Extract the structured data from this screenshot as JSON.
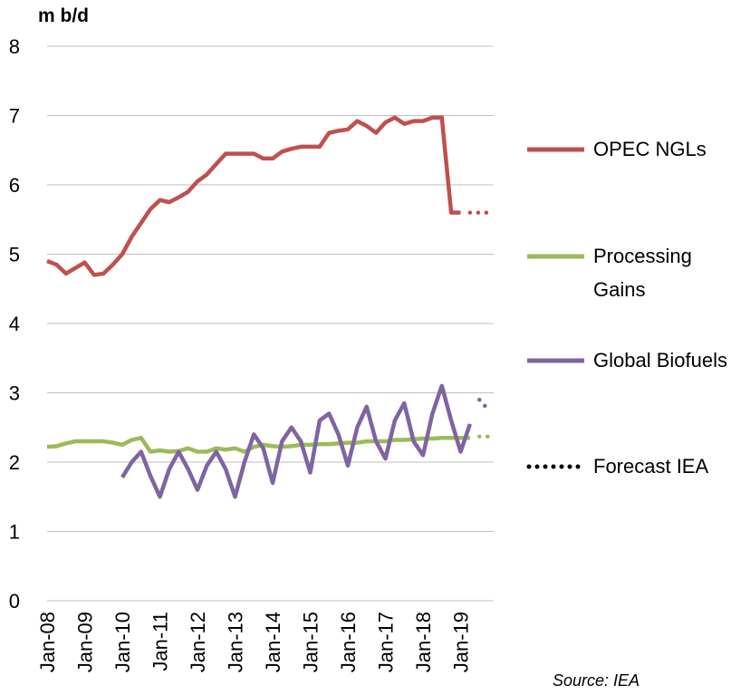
{
  "chart_data": {
    "type": "line",
    "y_axis_label": "m b/d",
    "source": "Source: IEA",
    "forecast_label": "Forecast IEA",
    "categories": [
      "Jan-08",
      null,
      null,
      null,
      "Jan-09",
      null,
      null,
      null,
      "Jan-10",
      null,
      null,
      null,
      "Jan-11",
      null,
      null,
      null,
      "Jan-12",
      null,
      null,
      null,
      "Jan-13",
      null,
      null,
      null,
      "Jan-14",
      null,
      null,
      null,
      "Jan-15",
      null,
      null,
      null,
      "Jan-16",
      null,
      null,
      null,
      "Jan-17",
      null,
      null,
      null,
      "Jan-18",
      null,
      null,
      null,
      "Jan-19",
      null,
      null,
      null
    ],
    "ylim": [
      0,
      8
    ],
    "yticks": [
      0,
      1,
      2,
      3,
      4,
      5,
      6,
      7,
      8
    ],
    "grid": true,
    "legend": "right",
    "series": [
      {
        "name": "OPEC NGLs",
        "color": "#c0504d",
        "values": [
          4.9,
          4.85,
          4.72,
          4.8,
          4.88,
          4.7,
          4.72,
          4.85,
          5.0,
          5.25,
          5.45,
          5.65,
          5.78,
          5.75,
          5.82,
          5.9,
          6.05,
          6.15,
          6.3,
          6.45,
          6.45,
          6.45,
          6.45,
          6.38,
          6.38,
          6.48,
          6.52,
          6.55,
          6.55,
          6.55,
          6.75,
          6.78,
          6.8,
          6.92,
          6.85,
          6.75,
          6.9,
          6.97,
          6.88,
          6.92,
          6.92,
          6.97,
          6.97,
          5.6,
          5.6,
          null,
          null,
          null
        ],
        "forecast_values": [
          null,
          null,
          null,
          null,
          null,
          null,
          null,
          null,
          null,
          null,
          null,
          null,
          null,
          null,
          null,
          null,
          null,
          null,
          null,
          null,
          null,
          null,
          null,
          null,
          null,
          null,
          null,
          null,
          null,
          null,
          null,
          null,
          null,
          null,
          null,
          null,
          null,
          null,
          null,
          null,
          null,
          null,
          null,
          null,
          null,
          5.6,
          5.6,
          5.6
        ]
      },
      {
        "name": "Processing Gains",
        "color": "#9bbb59",
        "values": [
          2.22,
          2.23,
          2.27,
          2.3,
          2.3,
          2.3,
          2.3,
          2.28,
          2.25,
          2.32,
          2.35,
          2.15,
          2.17,
          2.15,
          2.16,
          2.2,
          2.15,
          2.15,
          2.2,
          2.18,
          2.2,
          2.15,
          2.22,
          2.25,
          2.23,
          2.22,
          2.23,
          2.25,
          2.25,
          2.26,
          2.26,
          2.27,
          2.28,
          2.28,
          2.3,
          2.3,
          2.3,
          2.32,
          2.32,
          2.33,
          2.34,
          2.34,
          2.35,
          2.35,
          2.35,
          2.35,
          null,
          null
        ],
        "forecast_values": [
          null,
          null,
          null,
          null,
          null,
          null,
          null,
          null,
          null,
          null,
          null,
          null,
          null,
          null,
          null,
          null,
          null,
          null,
          null,
          null,
          null,
          null,
          null,
          null,
          null,
          null,
          null,
          null,
          null,
          null,
          null,
          null,
          null,
          null,
          null,
          null,
          null,
          null,
          null,
          null,
          null,
          null,
          null,
          null,
          null,
          null,
          2.37,
          2.37
        ]
      },
      {
        "name": "Global Biofuels",
        "color": "#8064a2",
        "values": [
          null,
          null,
          null,
          null,
          null,
          null,
          null,
          null,
          1.78,
          2.0,
          2.15,
          1.8,
          1.5,
          1.9,
          2.15,
          1.9,
          1.6,
          1.95,
          2.15,
          1.9,
          1.5,
          2.0,
          2.4,
          2.2,
          1.7,
          2.3,
          2.5,
          2.3,
          1.85,
          2.6,
          2.7,
          2.4,
          1.95,
          2.5,
          2.8,
          2.3,
          2.05,
          2.6,
          2.85,
          2.3,
          2.1,
          2.7,
          3.1,
          2.6,
          2.15,
          2.55,
          null,
          null
        ],
        "forecast_values": [
          null,
          null,
          null,
          null,
          null,
          null,
          null,
          null,
          null,
          null,
          null,
          null,
          null,
          null,
          null,
          null,
          null,
          null,
          null,
          null,
          null,
          null,
          null,
          null,
          null,
          null,
          null,
          null,
          null,
          null,
          null,
          null,
          null,
          null,
          null,
          null,
          null,
          null,
          null,
          null,
          null,
          null,
          null,
          null,
          null,
          null,
          2.9,
          2.75
        ]
      }
    ]
  }
}
